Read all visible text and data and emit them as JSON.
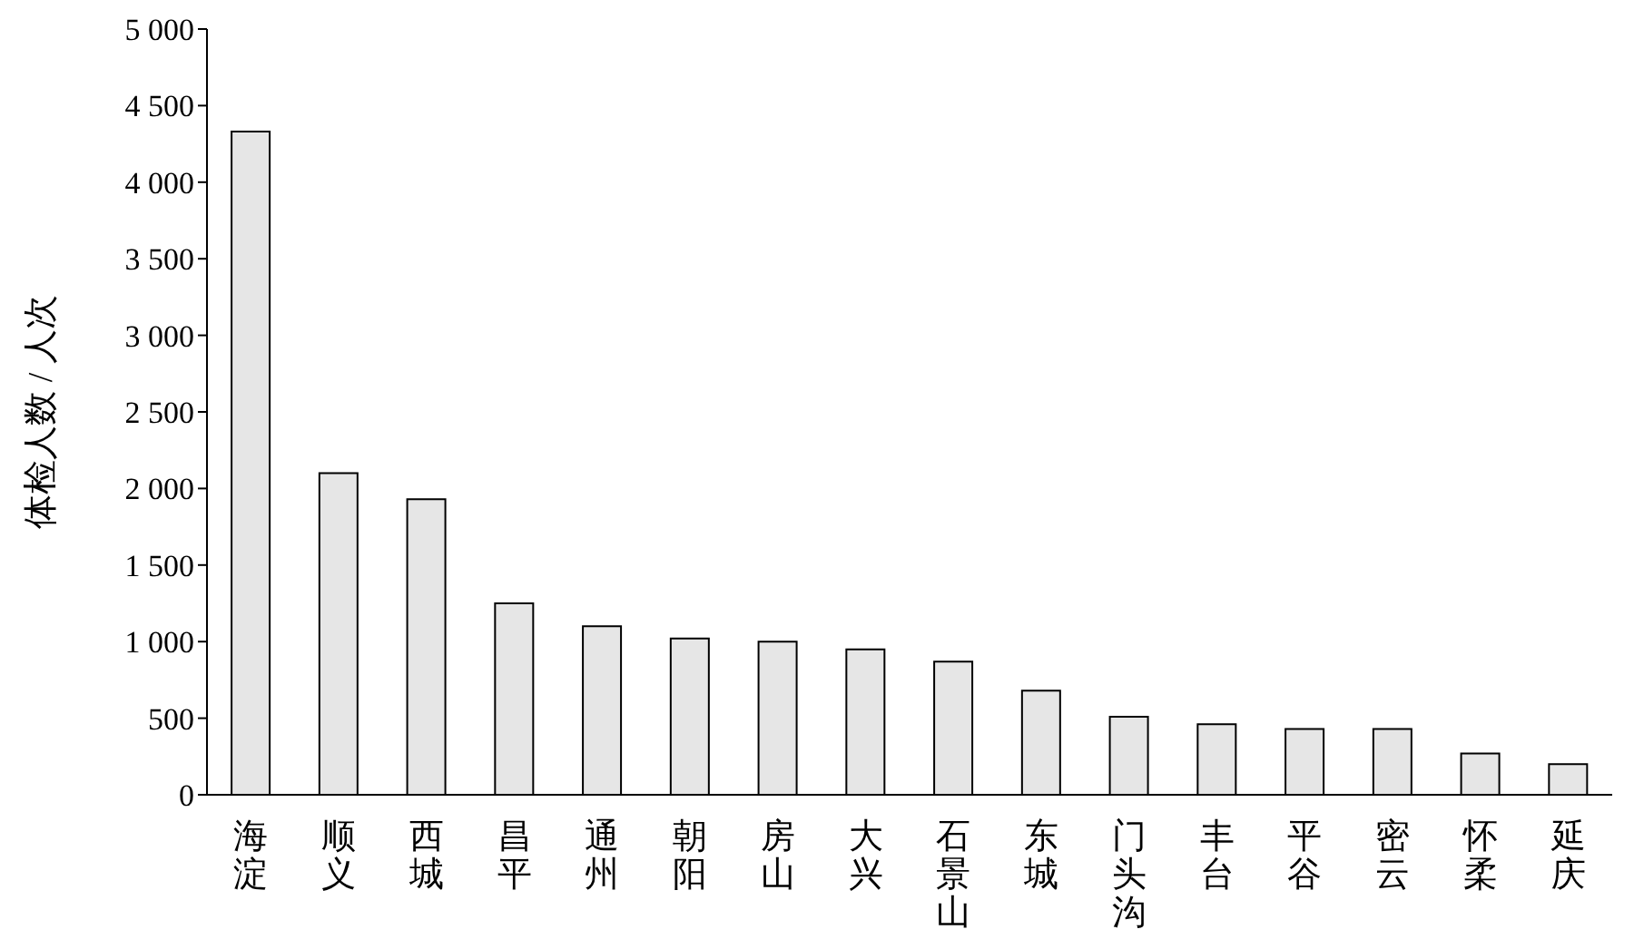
{
  "chart_data": {
    "type": "bar",
    "ylabel": "体检人数 / 人次",
    "categories": [
      "海淀",
      "顺义",
      "西城",
      "昌平",
      "通州",
      "朝阳",
      "房山",
      "大兴",
      "石景山",
      "东城",
      "门头沟",
      "丰台",
      "平谷",
      "密云",
      "怀柔",
      "延庆"
    ],
    "values": [
      4330,
      2100,
      1930,
      1250,
      1100,
      1020,
      1000,
      950,
      870,
      680,
      510,
      460,
      430,
      430,
      270,
      200
    ],
    "color": "#e6e6e6",
    "ylim": [
      0,
      5000
    ],
    "yticks": [
      0,
      500,
      {
        "value": 1000,
        "label": "1 000"
      },
      {
        "value": 1500,
        "label": "1 500"
      },
      {
        "value": 2000,
        "label": "2 000"
      },
      {
        "value": 2500,
        "label": "2 500"
      },
      {
        "value": 3000,
        "label": "3 000"
      },
      {
        "value": 3500,
        "label": "3 500"
      },
      {
        "value": 4000,
        "label": "4 000"
      },
      {
        "value": 4500,
        "label": "4 500"
      },
      {
        "value": 5000,
        "label": "5 000"
      }
    ],
    "grid": false,
    "legend": false
  }
}
